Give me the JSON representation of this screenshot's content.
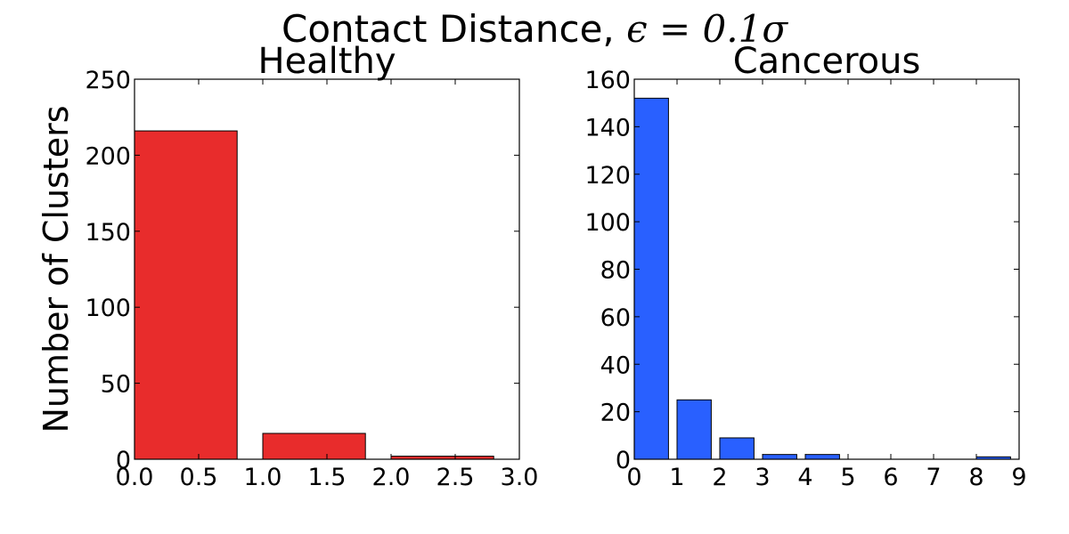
{
  "figure": {
    "title_prefix": "Contact Distance, ",
    "title_math": "ϵ = 0.1σ"
  },
  "chart_data": [
    {
      "type": "bar",
      "title": "Healthy",
      "ylabel": "Number of Clusters",
      "xlabel": "",
      "xlim": [
        0,
        3
      ],
      "ylim": [
        0,
        250
      ],
      "xticks": [
        "0.0",
        "0.5",
        "1.0",
        "1.5",
        "2.0",
        "2.5",
        "3.0"
      ],
      "yticks": [
        "0",
        "50",
        "100",
        "150",
        "200",
        "250"
      ],
      "bar_width": 0.8,
      "bars": [
        {
          "x": 0,
          "value": 216
        },
        {
          "x": 1,
          "value": 17
        },
        {
          "x": 2,
          "value": 2
        }
      ],
      "color": "#e82c2c",
      "grid": false
    },
    {
      "type": "bar",
      "title": "Cancerous",
      "ylabel": "",
      "xlabel": "",
      "xlim": [
        0,
        9
      ],
      "ylim": [
        0,
        160
      ],
      "xticks": [
        "0",
        "1",
        "2",
        "3",
        "4",
        "5",
        "6",
        "7",
        "8",
        "9"
      ],
      "yticks": [
        "0",
        "20",
        "40",
        "60",
        "80",
        "100",
        "120",
        "140",
        "160"
      ],
      "bar_width": 0.8,
      "bars": [
        {
          "x": 0,
          "value": 152
        },
        {
          "x": 1,
          "value": 25
        },
        {
          "x": 2,
          "value": 9
        },
        {
          "x": 3,
          "value": 2
        },
        {
          "x": 4,
          "value": 2
        },
        {
          "x": 5,
          "value": 0
        },
        {
          "x": 6,
          "value": 0
        },
        {
          "x": 7,
          "value": 0
        },
        {
          "x": 8,
          "value": 1
        }
      ],
      "color": "#2960ff",
      "grid": false
    }
  ]
}
